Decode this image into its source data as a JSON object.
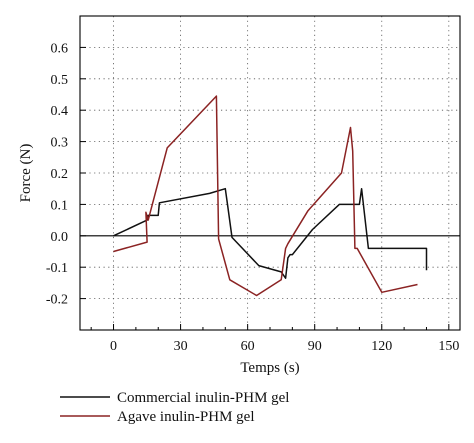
{
  "chart_data": {
    "type": "line",
    "title": "",
    "xlabel": "Temps (s)",
    "ylabel": "Force (N)",
    "xlim": [
      -15,
      155
    ],
    "ylim": [
      -0.3,
      0.7
    ],
    "x_ticks": [
      0,
      30,
      60,
      90,
      120,
      150
    ],
    "y_ticks": [
      0.6,
      0.5,
      0.4,
      0.3,
      0.2,
      0.1,
      0.0,
      -0.1,
      -0.2
    ],
    "grid": true,
    "legend_position": "bottom",
    "series": [
      {
        "name": "Commercial inulin-PHM gel",
        "color": "#111111",
        "x": [
          0,
          15,
          15.5,
          18,
          20,
          20.5,
          43,
          50,
          51,
          53,
          65,
          75,
          77,
          78,
          79,
          80,
          89,
          101,
          110,
          111,
          114,
          140,
          140
        ],
        "y": [
          0.0,
          0.05,
          0.065,
          0.065,
          0.065,
          0.105,
          0.135,
          0.15,
          0.1,
          -0.005,
          -0.095,
          -0.115,
          -0.135,
          -0.07,
          -0.06,
          -0.06,
          0.02,
          0.1,
          0.1,
          0.15,
          -0.04,
          -0.04,
          -0.11
        ]
      },
      {
        "name": "Agave inulin-PHM gel",
        "color": "#8b2323",
        "x": [
          0,
          15,
          14.5,
          15.5,
          24,
          46,
          47,
          52,
          64,
          75,
          77,
          78,
          87,
          102,
          106,
          107,
          108,
          109,
          120,
          136
        ],
        "y": [
          -0.05,
          -0.02,
          0.075,
          0.05,
          0.28,
          0.445,
          -0.01,
          -0.14,
          -0.19,
          -0.14,
          -0.04,
          -0.025,
          0.08,
          0.2,
          0.345,
          0.27,
          -0.04,
          -0.04,
          -0.18,
          -0.155
        ]
      }
    ]
  }
}
